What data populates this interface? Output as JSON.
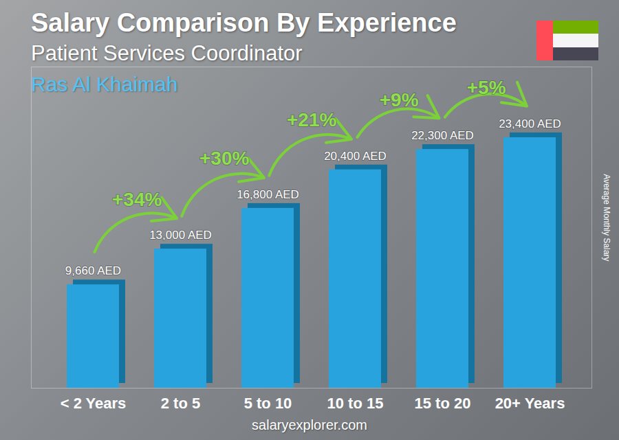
{
  "chart_data": {
    "type": "bar",
    "title": "Salary Comparison By Experience",
    "subtitle": "Patient Services Coordinator",
    "location": "Ras Al Khaimah",
    "y_label": "Average Monthly Salary",
    "source": "salaryexplorer.com",
    "categories": [
      "< 2 Years",
      "2 to 5",
      "5 to 10",
      "10 to 15",
      "15 to 20",
      "20+ Years"
    ],
    "values": [
      9660,
      13000,
      16800,
      20400,
      22300,
      23400
    ],
    "value_labels": [
      "9,660 AED",
      "13,000 AED",
      "16,800 AED",
      "20,400 AED",
      "22,300 AED",
      "23,400 AED"
    ],
    "annotations": [
      "+34%",
      "+30%",
      "+21%",
      "+9%",
      "+5%"
    ],
    "color": "#29a3dd",
    "ylim": [
      0,
      30000
    ],
    "yticks": [],
    "tick_labels": "x",
    "data_labels": true
  }
}
